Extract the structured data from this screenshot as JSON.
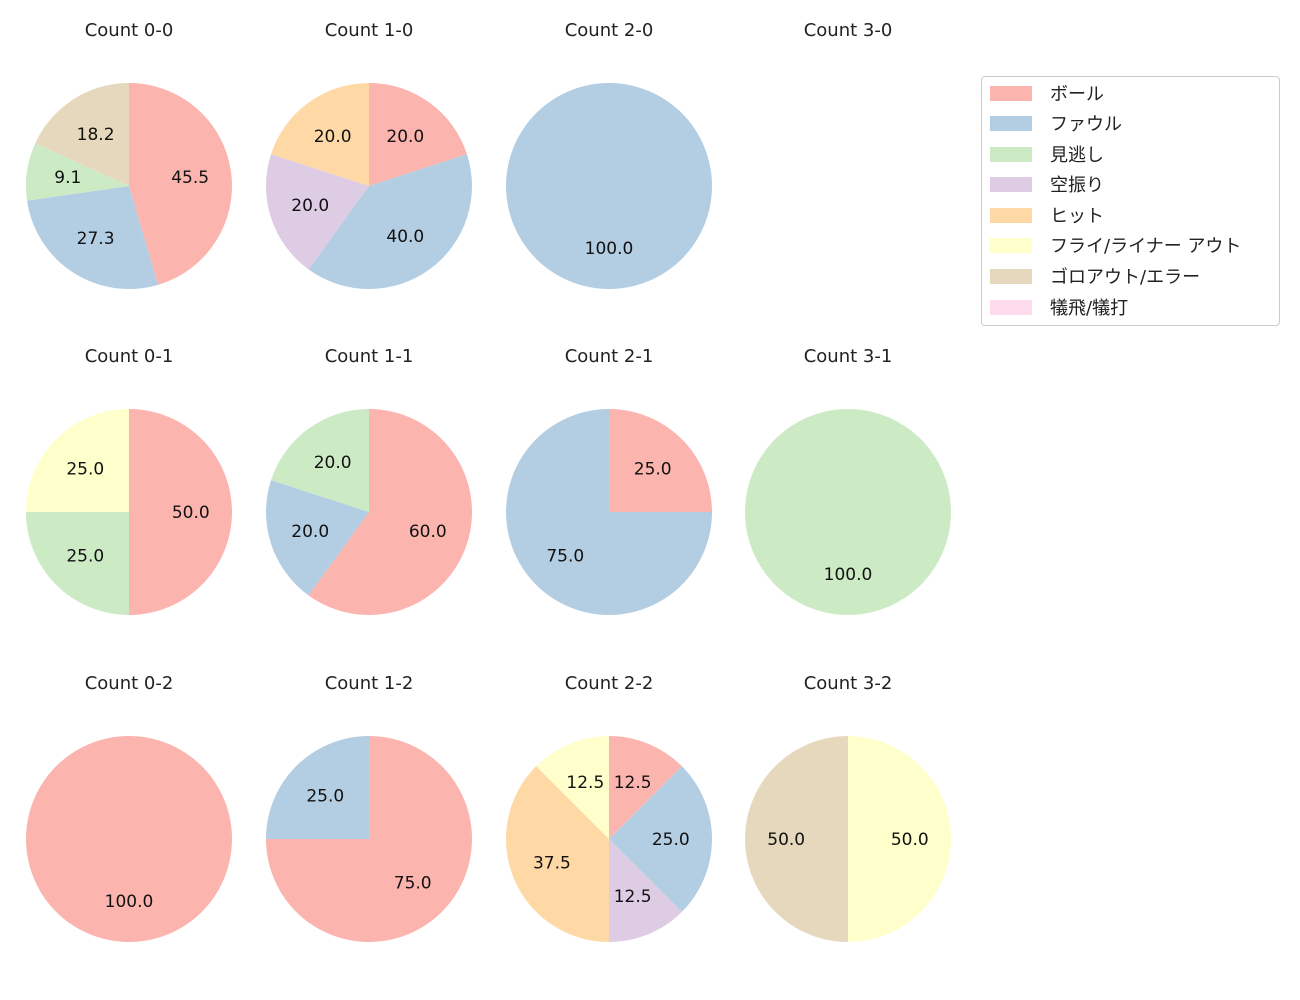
{
  "legend": {
    "items": [
      {
        "label": "ボール",
        "color": "#fbb4ae"
      },
      {
        "label": "ファウル",
        "color": "#b3cde3"
      },
      {
        "label": "見逃し",
        "color": "#ccebc5"
      },
      {
        "label": "空振り",
        "color": "#decbe4"
      },
      {
        "label": "ヒット",
        "color": "#fed9a6"
      },
      {
        "label": "フライ/ライナー アウト",
        "color": "#ffffcc"
      },
      {
        "label": "ゴロアウト/エラー",
        "color": "#e5d8bd"
      },
      {
        "label": "犠飛/犠打",
        "color": "#fddaec"
      }
    ]
  },
  "chart_data": [
    {
      "type": "pie",
      "title": "Count 0-0",
      "row": 0,
      "col": 0,
      "labels": [
        "ボール",
        "ファウル",
        "見逃し",
        "ゴロアウト/エラー"
      ],
      "values": [
        45.5,
        27.3,
        9.1,
        18.2
      ]
    },
    {
      "type": "pie",
      "title": "Count 1-0",
      "row": 0,
      "col": 1,
      "labels": [
        "ボール",
        "ファウル",
        "空振り",
        "ヒット"
      ],
      "values": [
        20.0,
        40.0,
        20.0,
        20.0
      ]
    },
    {
      "type": "pie",
      "title": "Count 2-0",
      "row": 0,
      "col": 2,
      "labels": [
        "ファウル"
      ],
      "values": [
        100.0
      ]
    },
    {
      "type": "pie",
      "title": "Count 3-0",
      "row": 0,
      "col": 3,
      "labels": [],
      "values": []
    },
    {
      "type": "pie",
      "title": "Count 0-1",
      "row": 1,
      "col": 0,
      "labels": [
        "ボール",
        "見逃し",
        "フライ/ライナー アウト"
      ],
      "values": [
        50.0,
        25.0,
        25.0
      ]
    },
    {
      "type": "pie",
      "title": "Count 1-1",
      "row": 1,
      "col": 1,
      "labels": [
        "ボール",
        "ファウル",
        "見逃し"
      ],
      "values": [
        60.0,
        20.0,
        20.0
      ]
    },
    {
      "type": "pie",
      "title": "Count 2-1",
      "row": 1,
      "col": 2,
      "labels": [
        "ボール",
        "ファウル"
      ],
      "values": [
        25.0,
        75.0
      ]
    },
    {
      "type": "pie",
      "title": "Count 3-1",
      "row": 1,
      "col": 3,
      "labels": [
        "見逃し"
      ],
      "values": [
        100.0
      ]
    },
    {
      "type": "pie",
      "title": "Count 0-2",
      "row": 2,
      "col": 0,
      "labels": [
        "ボール"
      ],
      "values": [
        100.0
      ]
    },
    {
      "type": "pie",
      "title": "Count 1-2",
      "row": 2,
      "col": 1,
      "labels": [
        "ボール",
        "ファウル"
      ],
      "values": [
        75.0,
        25.0
      ]
    },
    {
      "type": "pie",
      "title": "Count 2-2",
      "row": 2,
      "col": 2,
      "labels": [
        "ボール",
        "ファウル",
        "空振り",
        "ヒット",
        "フライ/ライナー アウト"
      ],
      "values": [
        12.5,
        25.0,
        12.5,
        37.5,
        12.5
      ]
    },
    {
      "type": "pie",
      "title": "Count 3-2",
      "row": 2,
      "col": 3,
      "labels": [
        "フライ/ライナー アウト",
        "ゴロアウト/エラー"
      ],
      "values": [
        50.0,
        50.0
      ]
    }
  ]
}
